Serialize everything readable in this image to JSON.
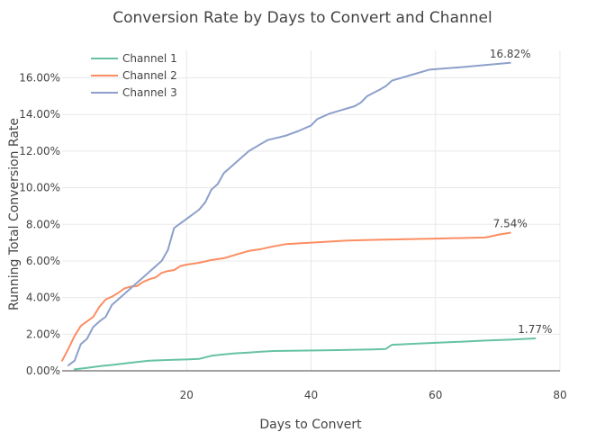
{
  "chart_data": {
    "type": "line",
    "title": "Conversion Rate by Days to Convert and Channel",
    "xlabel": "Days to Convert",
    "ylabel": "Running Total Conversion Rate",
    "xlim": [
      0,
      80
    ],
    "ylim": [
      0,
      17.5
    ],
    "x_ticks": [
      20,
      40,
      60,
      80
    ],
    "y_ticks": [
      0,
      2,
      4,
      6,
      8,
      10,
      12,
      14,
      16
    ],
    "y_tick_labels": [
      "0.00%",
      "2.00%",
      "4.00%",
      "6.00%",
      "8.00%",
      "10.00%",
      "12.00%",
      "14.00%",
      "16.00%"
    ],
    "grid": true,
    "legend_position": "top-left",
    "series": [
      {
        "name": "Channel 1",
        "color": "#66c2a5",
        "end_label": "1.77%",
        "points": [
          [
            2,
            0.08
          ],
          [
            4,
            0.16
          ],
          [
            6,
            0.25
          ],
          [
            8,
            0.32
          ],
          [
            10,
            0.4
          ],
          [
            12,
            0.48
          ],
          [
            14,
            0.55
          ],
          [
            16,
            0.58
          ],
          [
            18,
            0.6
          ],
          [
            20,
            0.62
          ],
          [
            22,
            0.65
          ],
          [
            24,
            0.82
          ],
          [
            26,
            0.9
          ],
          [
            28,
            0.96
          ],
          [
            30,
            1.0
          ],
          [
            32,
            1.04
          ],
          [
            34,
            1.08
          ],
          [
            38,
            1.1
          ],
          [
            42,
            1.12
          ],
          [
            46,
            1.14
          ],
          [
            50,
            1.17
          ],
          [
            52,
            1.19
          ],
          [
            53,
            1.42
          ],
          [
            56,
            1.47
          ],
          [
            60,
            1.53
          ],
          [
            64,
            1.59
          ],
          [
            68,
            1.65
          ],
          [
            72,
            1.7
          ],
          [
            76,
            1.77
          ]
        ]
      },
      {
        "name": "Channel 2",
        "color": "#fc8d62",
        "end_label": "7.54%",
        "points": [
          [
            0,
            0.55
          ],
          [
            1,
            1.2
          ],
          [
            2,
            1.9
          ],
          [
            3,
            2.45
          ],
          [
            4,
            2.7
          ],
          [
            5,
            2.95
          ],
          [
            6,
            3.5
          ],
          [
            7,
            3.9
          ],
          [
            8,
            4.05
          ],
          [
            9,
            4.25
          ],
          [
            10,
            4.5
          ],
          [
            11,
            4.6
          ],
          [
            12,
            4.62
          ],
          [
            13,
            4.85
          ],
          [
            14,
            5.0
          ],
          [
            15,
            5.1
          ],
          [
            16,
            5.35
          ],
          [
            17,
            5.45
          ],
          [
            18,
            5.5
          ],
          [
            19,
            5.72
          ],
          [
            20,
            5.8
          ],
          [
            22,
            5.9
          ],
          [
            24,
            6.05
          ],
          [
            26,
            6.15
          ],
          [
            28,
            6.35
          ],
          [
            30,
            6.55
          ],
          [
            32,
            6.65
          ],
          [
            34,
            6.8
          ],
          [
            36,
            6.92
          ],
          [
            40,
            7.0
          ],
          [
            46,
            7.12
          ],
          [
            50,
            7.15
          ],
          [
            60,
            7.22
          ],
          [
            68,
            7.28
          ],
          [
            69,
            7.35
          ],
          [
            70,
            7.43
          ],
          [
            72,
            7.54
          ]
        ]
      },
      {
        "name": "Channel 3",
        "color": "#8da0cb",
        "end_label": "16.82%",
        "points": [
          [
            1,
            0.3
          ],
          [
            2,
            0.55
          ],
          [
            3,
            1.45
          ],
          [
            4,
            1.75
          ],
          [
            5,
            2.4
          ],
          [
            6,
            2.7
          ],
          [
            7,
            2.95
          ],
          [
            8,
            3.6
          ],
          [
            9,
            3.9
          ],
          [
            10,
            4.2
          ],
          [
            11,
            4.5
          ],
          [
            12,
            4.8
          ],
          [
            13,
            5.1
          ],
          [
            14,
            5.4
          ],
          [
            15,
            5.7
          ],
          [
            16,
            6.0
          ],
          [
            17,
            6.6
          ],
          [
            18,
            7.8
          ],
          [
            20,
            8.3
          ],
          [
            22,
            8.8
          ],
          [
            23,
            9.2
          ],
          [
            24,
            9.9
          ],
          [
            25,
            10.2
          ],
          [
            26,
            10.8
          ],
          [
            28,
            11.4
          ],
          [
            30,
            12.0
          ],
          [
            32,
            12.4
          ],
          [
            33,
            12.6
          ],
          [
            36,
            12.85
          ],
          [
            38,
            13.1
          ],
          [
            40,
            13.4
          ],
          [
            41,
            13.75
          ],
          [
            43,
            14.05
          ],
          [
            45,
            14.25
          ],
          [
            47,
            14.45
          ],
          [
            48,
            14.65
          ],
          [
            49,
            15.0
          ],
          [
            51,
            15.35
          ],
          [
            52,
            15.55
          ],
          [
            53,
            15.85
          ],
          [
            56,
            16.15
          ],
          [
            59,
            16.45
          ],
          [
            64,
            16.58
          ],
          [
            68,
            16.7
          ],
          [
            72,
            16.82
          ]
        ]
      }
    ]
  }
}
